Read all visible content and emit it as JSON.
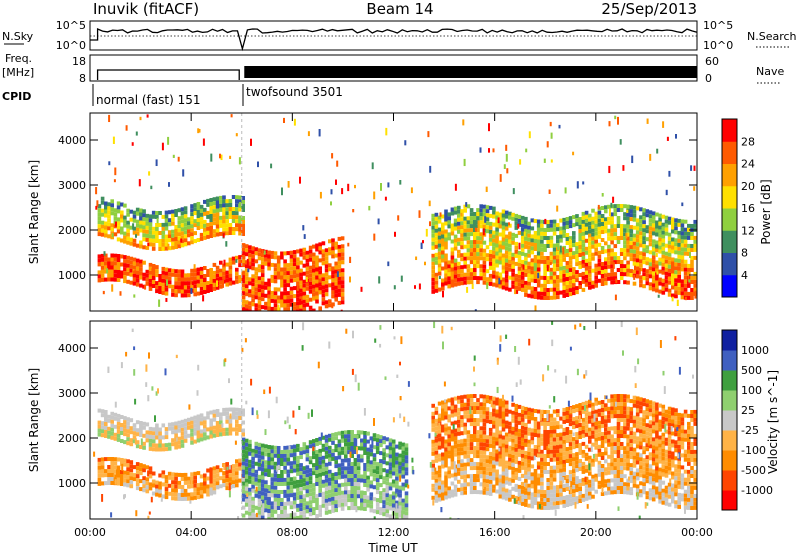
{
  "header": {
    "station": "Inuvik (fitACF)",
    "beam": "Beam 14",
    "date": "25/Sep/2013"
  },
  "status_panels": {
    "nsky": {
      "label": "N.Sky",
      "ticks": [
        "10^5",
        "10^0"
      ],
      "right_label": "N.Search",
      "right_ticks": [
        "10^5",
        "10^0"
      ]
    },
    "freq": {
      "label_line1": "Freq.",
      "label_line2": "[MHz]",
      "ticks": [
        "18",
        "8"
      ],
      "right_label": "Nave",
      "right_ticks": [
        "60",
        "0"
      ]
    },
    "cpid": {
      "label": "CPID",
      "segments": [
        {
          "name": "normal (fast) 151",
          "start_hour": 0,
          "end_hour": 6
        },
        {
          "name": "twofsound 3501",
          "start_hour": 6,
          "end_hour": 24
        }
      ]
    }
  },
  "chart_data": [
    {
      "type": "heatmap",
      "name": "power",
      "ylabel": "Slant Range [km]",
      "xlim": [
        0,
        24
      ],
      "ylim": [
        200,
        4600
      ],
      "yticks": [
        1000,
        2000,
        3000,
        4000
      ],
      "colorbar": {
        "label": "Power [dB]",
        "ticks": [
          "28",
          "24",
          "20",
          "16",
          "12",
          "8",
          "4"
        ],
        "colors": [
          "#0000ff",
          "#2f50a8",
          "#3f8f5f",
          "#8fcf3f",
          "#ffe000",
          "#ffa000",
          "#ff5a00",
          "#ff0000"
        ]
      },
      "bands": [
        {
          "x_start": 0.3,
          "x_end": 6.0,
          "range_start": 700,
          "range_end": 1300,
          "level": "high"
        },
        {
          "x_start": 0.3,
          "x_end": 6.0,
          "range_start": 1750,
          "range_end": 2600,
          "level": "medium"
        },
        {
          "x_start": 6.0,
          "x_end": 10.0,
          "range_start": 250,
          "range_end": 1700,
          "level": "high"
        },
        {
          "x_start": 13.5,
          "x_end": 24.0,
          "range_start": 700,
          "range_end": 2400,
          "level": "mixed"
        }
      ]
    },
    {
      "type": "heatmap",
      "name": "velocity",
      "xlabel": "Time UT",
      "ylabel": "Slant Range [km]",
      "xlim": [
        0,
        24
      ],
      "ylim": [
        200,
        4600
      ],
      "yticks": [
        1000,
        2000,
        3000,
        4000
      ],
      "xticks": [
        "00:00",
        "04:00",
        "08:00",
        "12:00",
        "16:00",
        "20:00",
        "00:00"
      ],
      "colorbar": {
        "label": "Velocity [m s^-1]",
        "ticks": [
          "1000",
          "500",
          "100",
          "25",
          "-25",
          "-100",
          "-500",
          "-1000"
        ],
        "colors": [
          "#ff0000",
          "#ff4500",
          "#ff8c00",
          "#ffb347",
          "#c8c8c8",
          "#8fcf6f",
          "#3f9f3f",
          "#4060c0",
          "#1020a0"
        ]
      },
      "bands": [
        {
          "x_start": 0.3,
          "x_end": 6.0,
          "range_start": 800,
          "range_end": 1400,
          "level": "negative"
        },
        {
          "x_start": 0.3,
          "x_end": 6.0,
          "range_start": 1900,
          "range_end": 2500,
          "level": "near-zero"
        },
        {
          "x_start": 6.0,
          "x_end": 12.5,
          "range_start": 300,
          "range_end": 2000,
          "level": "positive"
        },
        {
          "x_start": 13.5,
          "x_end": 24.0,
          "range_start": 600,
          "range_end": 2800,
          "level": "negative"
        }
      ]
    }
  ]
}
